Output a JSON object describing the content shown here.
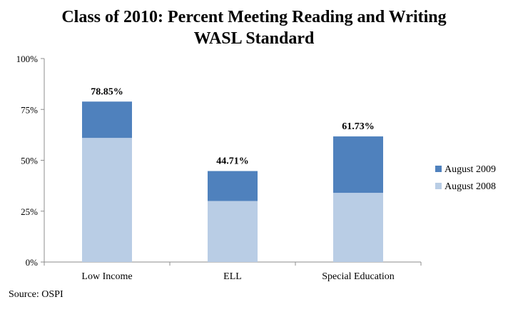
{
  "chart_data": {
    "type": "bar",
    "stacked": true,
    "title_lines": [
      "Class of 2010: Percent Meeting Reading and Writing",
      "WASL Standard"
    ],
    "categories": [
      "Low Income",
      "ELL",
      "Special Education"
    ],
    "series": [
      {
        "name": "August 2008",
        "values": [
          61.0,
          30.0,
          34.0
        ],
        "color": "#b9cde5"
      },
      {
        "name": "August 2009",
        "values": [
          17.85,
          14.71,
          27.73
        ],
        "color": "#4f81bd"
      }
    ],
    "total_labels": [
      "78.85%",
      "44.71%",
      "61.73%"
    ],
    "totals": [
      78.85,
      44.71,
      61.73
    ],
    "ylim": [
      0,
      100
    ],
    "yticks": [
      0,
      25,
      50,
      75,
      100
    ],
    "ytick_labels": [
      "0%",
      "25%",
      "50%",
      "75%",
      "100%"
    ],
    "legend": {
      "position": "right",
      "order": [
        "August 2009",
        "August 2008"
      ]
    },
    "grid": false,
    "source": "Source: OSPI"
  }
}
